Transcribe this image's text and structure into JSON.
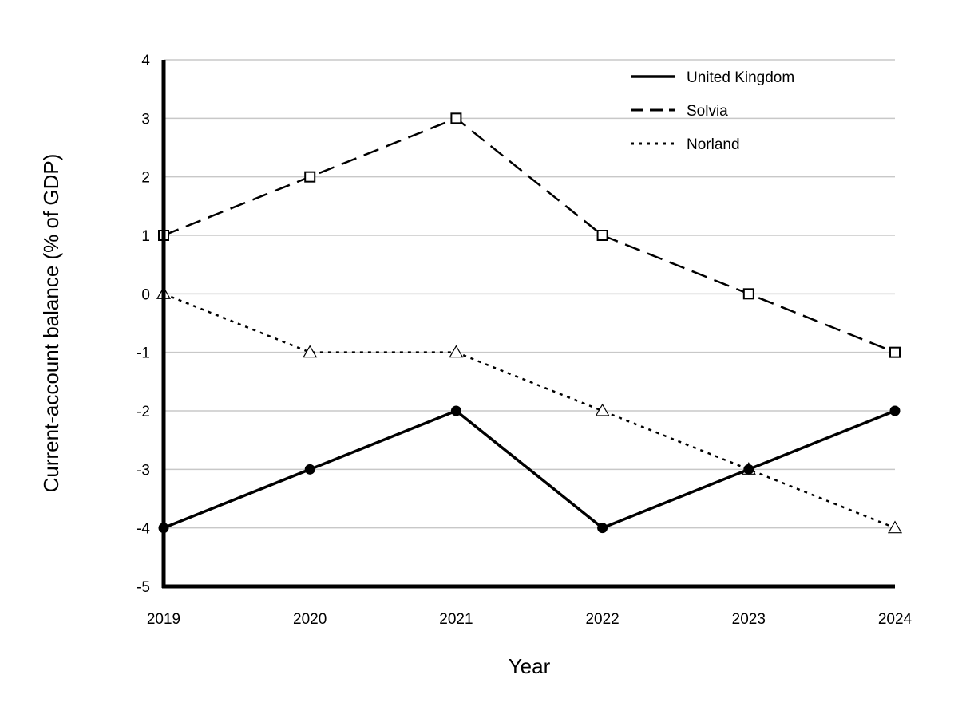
{
  "chart_data": {
    "type": "line",
    "title": "",
    "xlabel": "Year",
    "ylabel": "Current-account balance (% of GDP)",
    "categories": [
      "2019",
      "2020",
      "2021",
      "2022",
      "2023",
      "2024"
    ],
    "ylim": [
      -5,
      4
    ],
    "yticks": [
      "4",
      "3",
      "2",
      "1",
      "0",
      "-1",
      "-2",
      "-3",
      "-4",
      "-5"
    ],
    "grid": "horizontal",
    "legend_position": "top-right",
    "series": [
      {
        "name": "United Kingdom",
        "values": [
          -4,
          -3,
          -2,
          -4,
          -3,
          -2
        ],
        "line_style": "solid",
        "marker": "filled-circle",
        "color": "#000000"
      },
      {
        "name": "Solvia",
        "values": [
          1,
          2,
          3,
          1,
          0,
          -1
        ],
        "line_style": "dashed",
        "marker": "open-square",
        "color": "#000000"
      },
      {
        "name": "Norland",
        "values": [
          0,
          -1,
          -1,
          -2,
          -3,
          -4
        ],
        "line_style": "dotted",
        "marker": "open-triangle",
        "color": "#000000"
      }
    ]
  }
}
